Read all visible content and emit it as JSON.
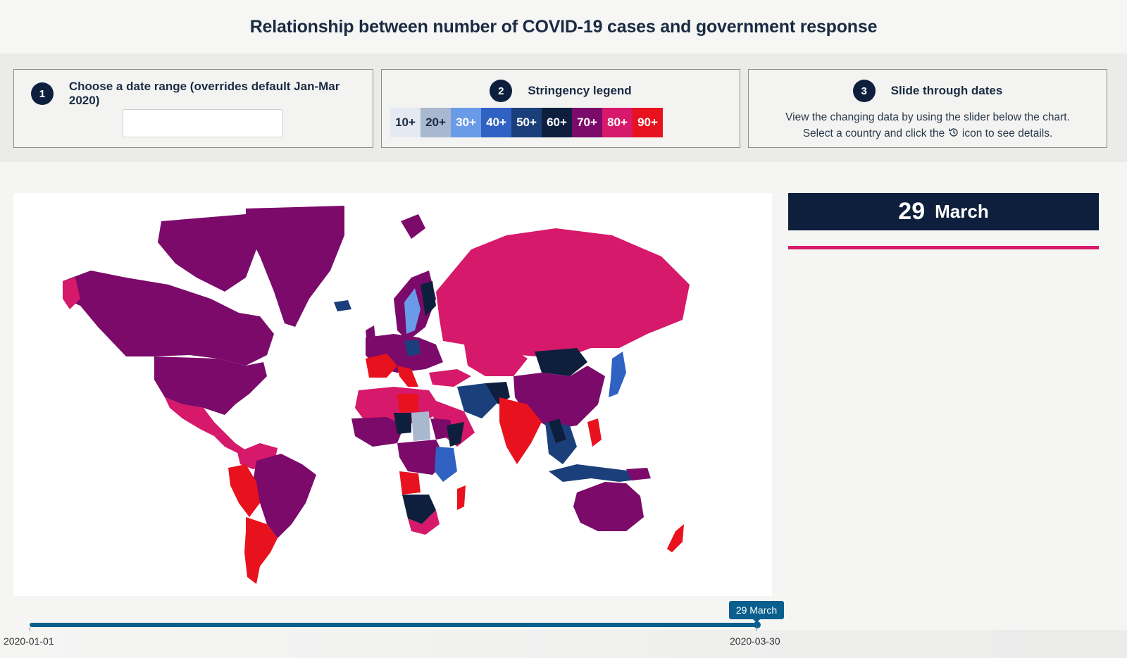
{
  "header": {
    "title": "Relationship between number of COVID-19 cases and government response"
  },
  "panels": {
    "date_range": {
      "step": "1",
      "title": "Choose a date range (overrides default Jan-Mar 2020)",
      "value": "",
      "placeholder": ""
    },
    "legend": {
      "step": "2",
      "title": "Stringency legend",
      "items": [
        {
          "label": "10+",
          "color": "#e4e9f2",
          "text_color": "#1a2b42"
        },
        {
          "label": "20+",
          "color": "#a9b7cf",
          "text_color": "#1a2b42"
        },
        {
          "label": "30+",
          "color": "#6a9be8",
          "text_color": "#ffffff"
        },
        {
          "label": "40+",
          "color": "#2f62c2",
          "text_color": "#ffffff"
        },
        {
          "label": "50+",
          "color": "#1b3f7a",
          "text_color": "#ffffff"
        },
        {
          "label": "60+",
          "color": "#0e1f3d",
          "text_color": "#ffffff"
        },
        {
          "label": "70+",
          "color": "#7b0a6a",
          "text_color": "#ffffff"
        },
        {
          "label": "80+",
          "color": "#d6196a",
          "text_color": "#ffffff"
        },
        {
          "label": "90+",
          "color": "#e8121e",
          "text_color": "#ffffff"
        }
      ]
    },
    "slide": {
      "step": "3",
      "title": "Slide through dates",
      "line1": "View the changing data by using the slider below the chart.",
      "line2_before": "Select a country and click the",
      "line2_after": "icon to see details.",
      "icon": "history-clock-icon"
    }
  },
  "current_date": {
    "day": "29",
    "month": "March"
  },
  "slider": {
    "tooltip": "29 March",
    "start_label": "2020-01-01",
    "end_label": "2020-03-30",
    "position": 0.99
  },
  "colors": {
    "accent": "#d6196a",
    "navy": "#0e1f3d",
    "slider": "#0a5f8e"
  }
}
